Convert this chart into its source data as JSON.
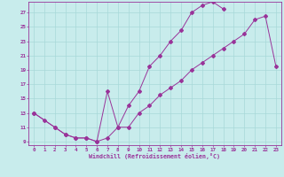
{
  "xlabel": "Windchill (Refroidissement éolien,°C)",
  "xlim": [
    -0.5,
    23.5
  ],
  "ylim": [
    8.5,
    28.5
  ],
  "xticks": [
    0,
    1,
    2,
    3,
    4,
    5,
    6,
    7,
    8,
    9,
    10,
    11,
    12,
    13,
    14,
    15,
    16,
    17,
    18,
    19,
    20,
    21,
    22,
    23
  ],
  "yticks": [
    9,
    11,
    13,
    15,
    17,
    19,
    21,
    23,
    25,
    27
  ],
  "bg_color": "#c8ecec",
  "grid_color": "#a8d8d8",
  "line_color": "#993399",
  "upper_x": [
    0,
    1,
    2,
    3,
    4,
    5,
    6,
    7,
    8,
    9,
    10,
    11,
    12,
    13,
    14,
    15,
    16,
    17,
    18
  ],
  "upper_y": [
    13,
    12,
    11,
    10,
    9.5,
    9.5,
    9,
    16,
    11,
    14,
    16,
    19.5,
    21,
    23,
    24.5,
    27,
    28,
    28.5,
    27.5
  ],
  "lower_x": [
    0,
    2,
    3,
    4,
    5,
    6,
    7,
    8,
    9,
    10,
    11,
    12,
    13,
    14,
    15,
    16,
    17,
    18,
    19,
    20,
    21,
    22,
    23
  ],
  "lower_y": [
    13,
    11,
    10,
    9.5,
    9.5,
    9,
    9.5,
    11,
    11,
    13,
    14,
    15.5,
    16.5,
    17.5,
    19,
    20,
    21,
    22,
    23,
    24,
    26,
    26.5,
    19.5
  ]
}
